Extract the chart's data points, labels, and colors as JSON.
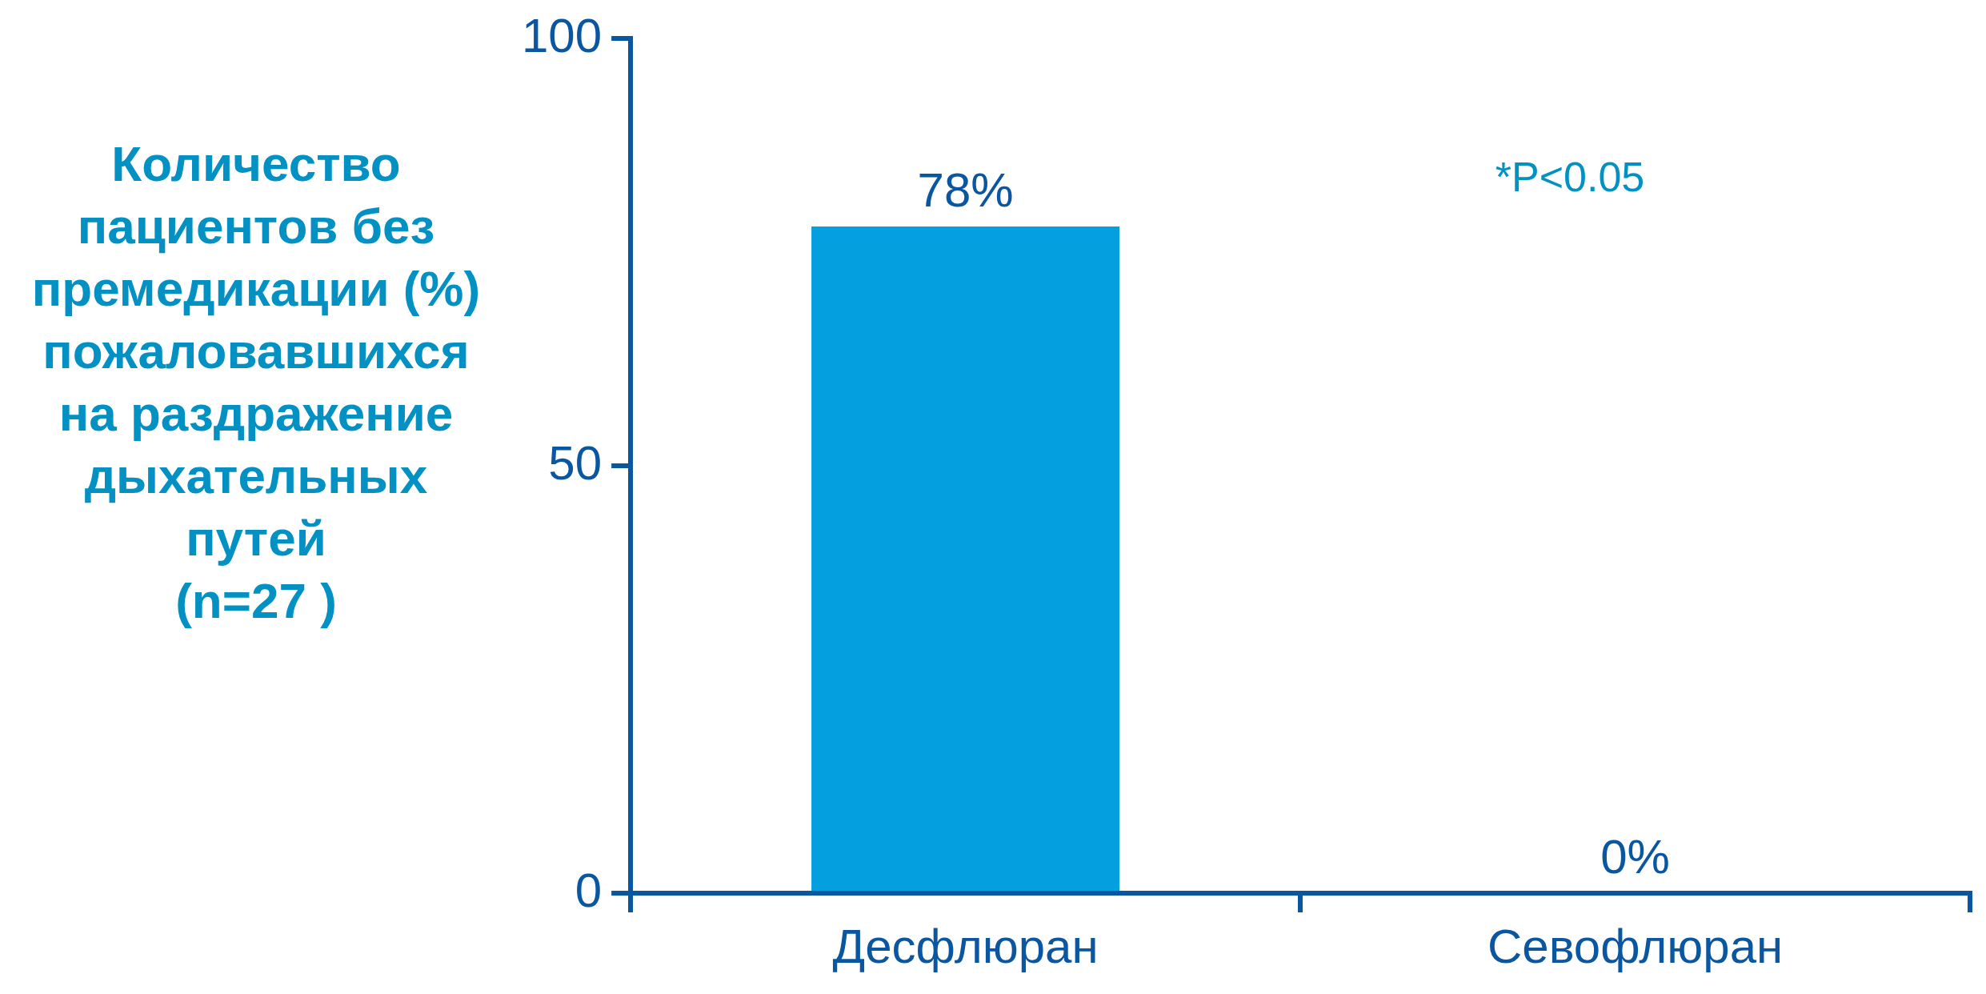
{
  "chart_data": {
    "type": "bar",
    "ylabel": "Количество\nпациентов без\nпремедикации (%)\nпожаловавшихся\nна раздражение\nдыхательных\nпутей\n(n=27 )",
    "categories": [
      "Десфлюран",
      "Севофлюран"
    ],
    "values": [
      78,
      0
    ],
    "value_labels": [
      "78%",
      "0%"
    ],
    "color": "#039fdf",
    "ylim": [
      0,
      100
    ],
    "yticks": [
      0,
      50,
      100
    ],
    "grid": false,
    "legend": false,
    "annotations": [
      "*P<0.05"
    ]
  }
}
